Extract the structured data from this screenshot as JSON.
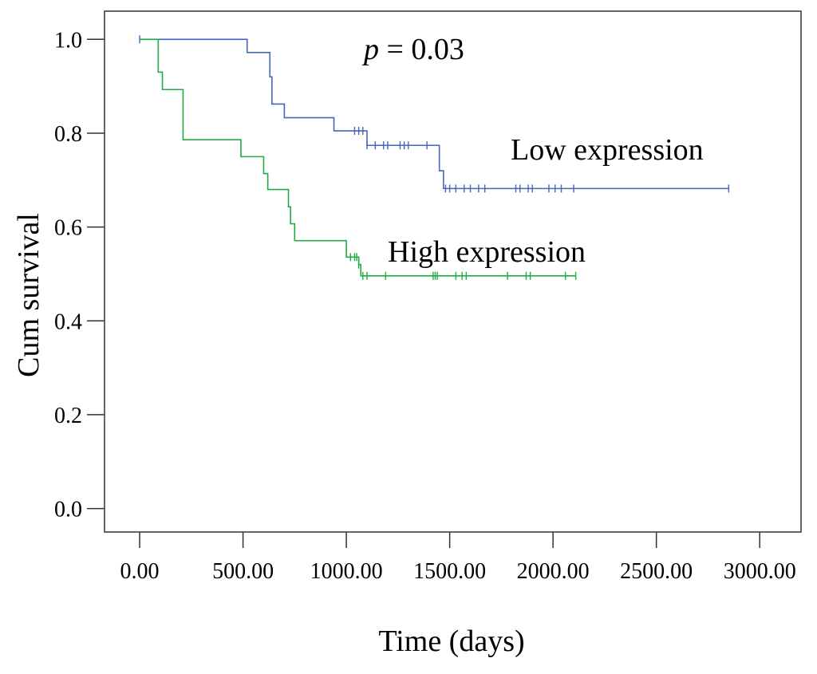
{
  "chart_data": {
    "type": "line",
    "subtype": "kaplan-meier",
    "title": "",
    "xlabel": "Time (days)",
    "ylabel": "Cum survival",
    "xlim": [
      -170,
      3200
    ],
    "ylim": [
      -0.05,
      1.06
    ],
    "x_ticks": [
      0,
      500,
      1000,
      1500,
      2000,
      2500,
      3000
    ],
    "x_tick_labels": [
      "0.00",
      "500.00",
      "1000.00",
      "1500.00",
      "2000.00",
      "2500.00",
      "3000.00"
    ],
    "y_ticks": [
      0.0,
      0.2,
      0.4,
      0.6,
      0.8,
      1.0
    ],
    "y_tick_labels": [
      "0.0",
      "0.2",
      "0.4",
      "0.6",
      "0.8",
      "1.0"
    ],
    "grid": false,
    "annotation": {
      "prefix": "p",
      "text": " = 0.03",
      "placement": "top-center"
    },
    "series": [
      {
        "name": "Low expression",
        "color": "#4466bb",
        "step_x": [
          0,
          520,
          630,
          640,
          700,
          940,
          1100,
          1450,
          1470,
          2850
        ],
        "step_y": [
          1.0,
          0.972,
          0.92,
          0.862,
          0.833,
          0.805,
          0.774,
          0.72,
          0.682,
          0.682
        ],
        "censored_x": [
          0,
          1040,
          1060,
          1080,
          1100,
          1140,
          1180,
          1200,
          1260,
          1280,
          1300,
          1390,
          1480,
          1500,
          1530,
          1570,
          1600,
          1640,
          1670,
          1820,
          1840,
          1880,
          1900,
          1980,
          2010,
          2040,
          2100,
          2850
        ]
      },
      {
        "name": "High expression",
        "color": "#22aa44",
        "step_x": [
          0,
          90,
          110,
          210,
          490,
          600,
          620,
          650,
          720,
          730,
          750,
          1000,
          1050,
          1060,
          1070,
          2110
        ],
        "step_y": [
          1.0,
          0.93,
          0.893,
          0.786,
          0.75,
          0.714,
          0.68,
          0.68,
          0.643,
          0.607,
          0.571,
          0.536,
          0.536,
          0.52,
          0.496,
          0.496
        ],
        "censored_x": [
          1020,
          1040,
          1050,
          1060,
          1080,
          1100,
          1190,
          1420,
          1430,
          1440,
          1530,
          1560,
          1580,
          1780,
          1870,
          1890,
          2060,
          2110
        ]
      }
    ]
  }
}
